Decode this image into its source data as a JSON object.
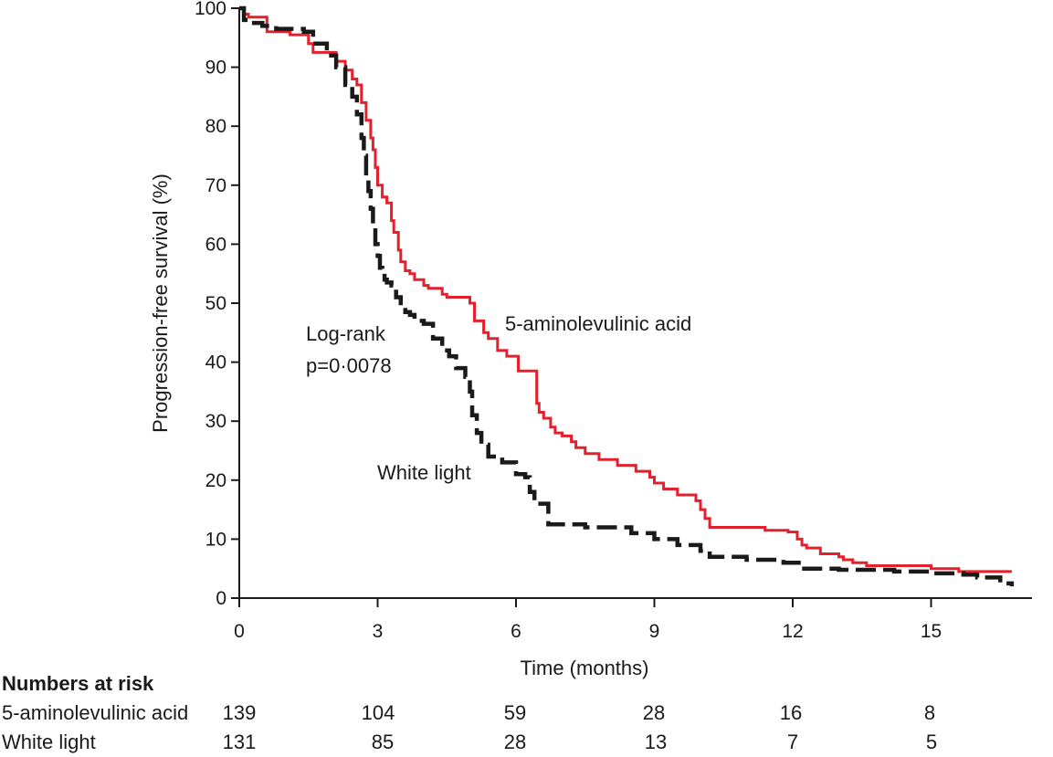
{
  "chart_data": {
    "type": "line",
    "chart_kind": "kaplan-meier survival curve",
    "ylabel": "Progression-free survival (%)",
    "xlabel": "Time (months)",
    "xlim": [
      0,
      17
    ],
    "ylim": [
      0,
      100
    ],
    "xticks": [
      0,
      3,
      6,
      9,
      12,
      15
    ],
    "yticks": [
      0,
      10,
      20,
      30,
      40,
      50,
      60,
      70,
      80,
      90,
      100
    ],
    "grid": false,
    "legend": "none (series labelled directly on plot)",
    "series": [
      {
        "name": "5-aminolevulinic acid",
        "color": "#e3202c",
        "style": "solid",
        "x": [
          0,
          0.1,
          0.2,
          0.6,
          1.1,
          1.5,
          1.6,
          2.1,
          2.3,
          2.45,
          2.55,
          2.65,
          2.75,
          2.85,
          2.9,
          2.95,
          3.0,
          3.1,
          3.2,
          3.3,
          3.35,
          3.45,
          3.5,
          3.6,
          3.7,
          3.8,
          4.0,
          4.1,
          4.4,
          4.5,
          5.0,
          5.1,
          5.3,
          5.4,
          5.6,
          5.8,
          6.05,
          6.2,
          6.45,
          6.5,
          6.6,
          6.75,
          6.85,
          7.0,
          7.2,
          7.3,
          7.5,
          7.8,
          8.2,
          8.6,
          8.9,
          9.0,
          9.2,
          9.5,
          9.9,
          10.0,
          10.1,
          10.2,
          11.2,
          11.4,
          11.9,
          12.1,
          12.2,
          12.3,
          12.6,
          13.0,
          13.1,
          13.3,
          13.6,
          13.8,
          15.0,
          15.6,
          16.75
        ],
        "values": [
          100,
          99,
          98.5,
          96,
          95.5,
          94,
          92.5,
          91,
          89.5,
          88,
          87,
          84,
          81,
          78,
          76,
          73,
          70,
          68,
          67,
          64,
          62,
          59,
          57,
          55.5,
          55,
          54,
          53,
          52.5,
          51.5,
          51,
          50,
          47,
          45,
          44,
          42,
          41,
          38.5,
          38.5,
          33,
          31.5,
          30.5,
          29,
          28,
          27.5,
          26.5,
          25.5,
          24.5,
          23.5,
          22.5,
          21.5,
          20.5,
          19.5,
          18.5,
          17.5,
          16.5,
          15,
          13.5,
          12,
          12,
          11.5,
          11.2,
          10,
          9,
          8.5,
          7.5,
          7,
          6.5,
          6,
          5.5,
          5.5,
          5,
          4.5,
          4.5
        ]
      },
      {
        "name": "White light",
        "color": "#1a1a1a",
        "style": "dashed",
        "x": [
          0,
          0.1,
          0.2,
          0.5,
          0.8,
          1.4,
          1.6,
          1.9,
          2.1,
          2.3,
          2.45,
          2.55,
          2.65,
          2.7,
          2.75,
          2.8,
          2.85,
          2.9,
          2.95,
          3.0,
          3.05,
          3.1,
          3.15,
          3.2,
          3.3,
          3.4,
          3.5,
          3.6,
          3.7,
          3.8,
          4.0,
          4.2,
          4.4,
          4.55,
          4.7,
          4.9,
          5.0,
          5.05,
          5.15,
          5.25,
          5.4,
          5.7,
          6.0,
          6.2,
          6.3,
          6.4,
          6.7,
          7.5,
          8.5,
          9.0,
          9.5,
          10.0,
          10.2,
          11.0,
          11.8,
          12.2,
          13.0,
          14.2,
          15.0,
          15.7,
          16.0,
          16.5,
          16.75
        ],
        "values": [
          100,
          98,
          97.5,
          97,
          96.5,
          96,
          94,
          92,
          90,
          87,
          85,
          82,
          78,
          75,
          72,
          69,
          66,
          63,
          60,
          58,
          56,
          55,
          54,
          53.5,
          53,
          51,
          50,
          48.5,
          48,
          47,
          46.5,
          44,
          42,
          41,
          39,
          37.5,
          35,
          31,
          28,
          26,
          24,
          23,
          21,
          20.5,
          18,
          16,
          12.5,
          12,
          11,
          10,
          9,
          8,
          7,
          6.5,
          6,
          5,
          4.8,
          4.5,
          4.2,
          4,
          3.5,
          2.5,
          2
        ]
      }
    ],
    "annotations": [
      {
        "text": "Log-rank",
        "lines": [
          "Log-rank",
          "p=0·0078"
        ]
      },
      {
        "text": "5-aminolevulinic acid"
      },
      {
        "text": "White light"
      }
    ]
  },
  "annotations": {
    "logrank_line1": "Log-rank",
    "logrank_line2": "p=0·0078",
    "ala_label": "5-aminolevulinic acid",
    "wl_label": "White light"
  },
  "risk_table": {
    "title": "Numbers at risk",
    "times": [
      0,
      3,
      6,
      9,
      12,
      15
    ],
    "rows": [
      {
        "name": "5-aminolevulinic acid",
        "counts": [
          "139",
          "104",
          "59",
          "28",
          "16",
          "8"
        ]
      },
      {
        "name": "White light",
        "counts": [
          "131",
          "85",
          "28",
          "13",
          "7",
          "5"
        ]
      }
    ]
  }
}
